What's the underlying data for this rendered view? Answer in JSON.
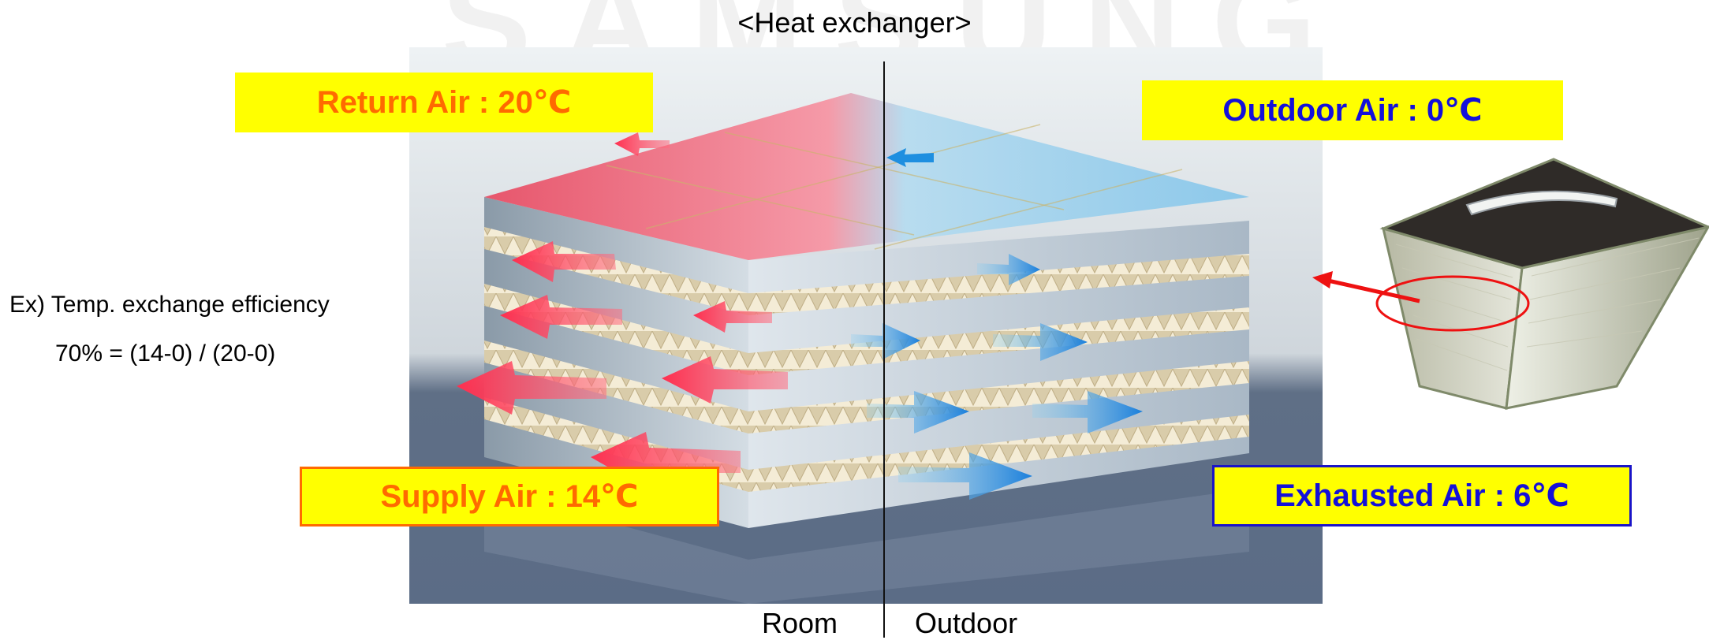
{
  "watermark": "SAMSUNG",
  "title": "<Heat exchanger>",
  "labels": {
    "return_air": "Return Air : 20℃",
    "outdoor_air": "Outdoor Air : 0℃",
    "supply_air": "Supply Air : 14℃",
    "exhausted_air": "Exhausted Air : 6℃"
  },
  "example": {
    "line1": "Ex) Temp. exchange efficiency",
    "line2": "70%  = (14-0) / (20-0)"
  },
  "sides": {
    "room": "Room",
    "outdoor": "Outdoor"
  },
  "colors": {
    "label_background": "#ffff00",
    "warm_text": "#ff6a00",
    "cool_text": "#1410d9",
    "warm_arrow": "#ff3a55",
    "cool_arrow": "#1e8fe0",
    "callout_arrow": "#ee1111"
  }
}
